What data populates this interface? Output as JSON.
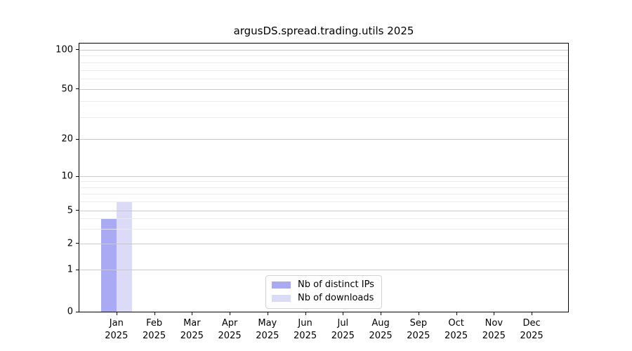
{
  "chart_data": {
    "type": "bar",
    "title": "argusDS.spread.trading.utils 2025",
    "categories": [
      "Jan",
      "Feb",
      "Mar",
      "Apr",
      "May",
      "Jun",
      "Jul",
      "Aug",
      "Sep",
      "Oct",
      "Nov",
      "Dec"
    ],
    "category_year": "2025",
    "series": [
      {
        "name": "Nb of distinct IPs",
        "color": "#a9a9f4",
        "values": [
          4,
          0,
          0,
          0,
          0,
          0,
          0,
          0,
          0,
          0,
          0,
          0
        ]
      },
      {
        "name": "Nb of downloads",
        "color": "#dbdbf8",
        "values": [
          6,
          0,
          0,
          0,
          0,
          0,
          0,
          0,
          0,
          0,
          0,
          0
        ]
      }
    ],
    "yscale": "symlog",
    "ylim": [
      0,
      100
    ],
    "yticks": [
      0,
      1,
      2,
      5,
      10,
      20,
      50,
      100
    ],
    "y_minor_ticks": [
      3,
      4,
      6,
      7,
      8,
      9,
      30,
      40,
      60,
      70,
      80,
      90
    ],
    "grid": "both",
    "legend_position": "lower center"
  },
  "colors": {
    "grid_major": "#c9c9c9",
    "grid_minor": "#eaeaea",
    "axis": "#000000",
    "background": "#ffffff"
  }
}
